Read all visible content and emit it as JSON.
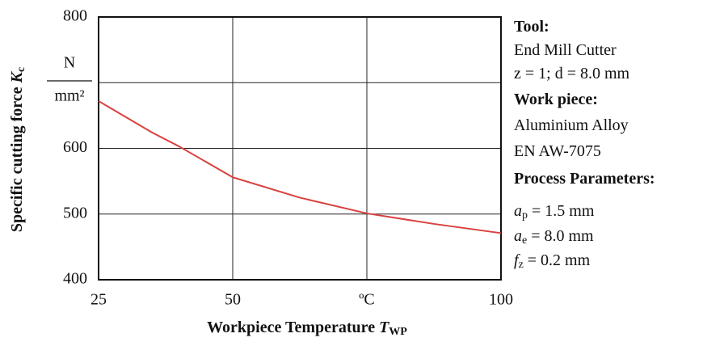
{
  "chart_data": {
    "type": "line",
    "ylabel": {
      "text": "Specific cutting force",
      "symbol": "K",
      "subscript": "c"
    },
    "xlabel": {
      "text": "Workpiece Temperature",
      "symbol": "T",
      "subscript": "WP"
    },
    "y_unit": {
      "numerator": "N",
      "denominator": "mm²"
    },
    "x": [
      25,
      30,
      35,
      40,
      50,
      62.5,
      75,
      87.5,
      100
    ],
    "series": [
      {
        "name": "Kc",
        "color": "#d9413f",
        "values": [
          672,
          648,
          624,
          603,
          556,
          525,
          501,
          485,
          471
        ]
      }
    ],
    "xlim": [
      25,
      100
    ],
    "xticks": [
      25,
      50,
      {
        "value": 75,
        "label": "ºC"
      },
      100
    ],
    "ylim": [
      400,
      800
    ],
    "yticks": [
      400,
      500,
      600,
      {
        "value": 700,
        "label": null
      },
      800
    ],
    "grid": true,
    "annotations": [
      {
        "text": "Tool:",
        "bold": true
      },
      {
        "text": "End Mill Cutter"
      },
      {
        "text": "z = 1; d = 8.0 mm"
      },
      {
        "text": "Work piece:",
        "bold": true
      },
      {
        "text": "Aluminium Alloy"
      },
      {
        "text": "EN AW-7075"
      },
      {
        "text": "Process Parameters:",
        "bold": true
      },
      {
        "symbol": "a",
        "subscript": "p",
        "text": " = 1.5 mm"
      },
      {
        "symbol": "a",
        "subscript": "e",
        "text": " = 8.0 mm"
      },
      {
        "symbol": "f",
        "subscript": "z",
        "text": "  = 0.2 mm"
      }
    ]
  }
}
